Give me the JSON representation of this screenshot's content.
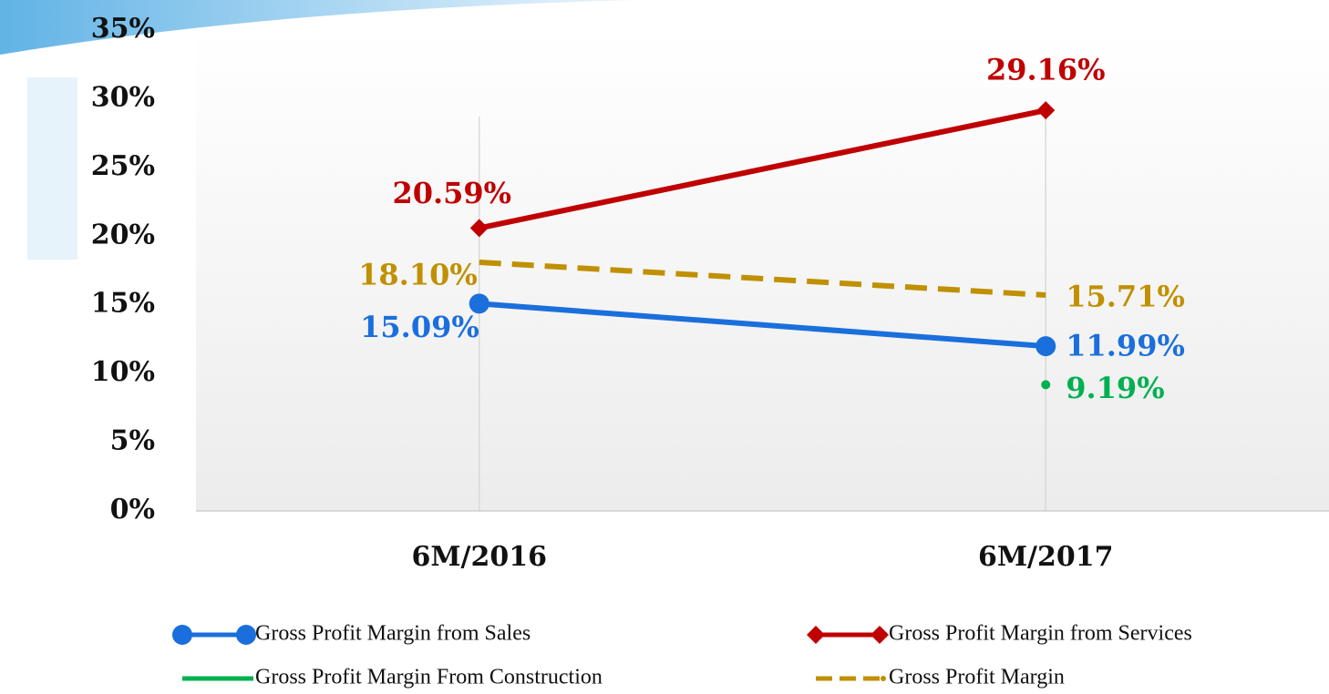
{
  "chart_data": {
    "type": "line",
    "categories": [
      "6M/2016",
      "6M/2017"
    ],
    "ylim": [
      0,
      35
    ],
    "yticks": [
      {
        "value": 0,
        "label": "0%"
      },
      {
        "value": 5,
        "label": "5%"
      },
      {
        "value": 10,
        "label": "10%"
      },
      {
        "value": 15,
        "label": "15%"
      },
      {
        "value": 20,
        "label": "20%"
      },
      {
        "value": 25,
        "label": "25%"
      },
      {
        "value": 30,
        "label": "30%"
      },
      {
        "value": 35,
        "label": "35%"
      }
    ],
    "series": [
      {
        "name": "Gross Profit Margin from Sales",
        "color": "#1a6fdc",
        "marker": "circle",
        "values": [
          15.09,
          11.99
        ],
        "value_labels": [
          "15.09%",
          "11.99%"
        ]
      },
      {
        "name": "Gross Profit Margin from Services",
        "color": "#c00000",
        "marker": "diamond",
        "values": [
          20.59,
          29.16
        ],
        "value_labels": [
          "20.59%",
          "29.16%"
        ]
      },
      {
        "name": "Gross Profit Margin From Construction",
        "color": "#00b050",
        "marker": "dot",
        "values": [
          null,
          9.19
        ],
        "value_labels": [
          null,
          "9.19%"
        ]
      },
      {
        "name": "Gross Profit Margin",
        "color": "#c09000",
        "marker": "none",
        "dashed": true,
        "values": [
          18.1,
          15.71
        ],
        "value_labels": [
          "18.10%",
          "15.71%"
        ]
      }
    ]
  }
}
